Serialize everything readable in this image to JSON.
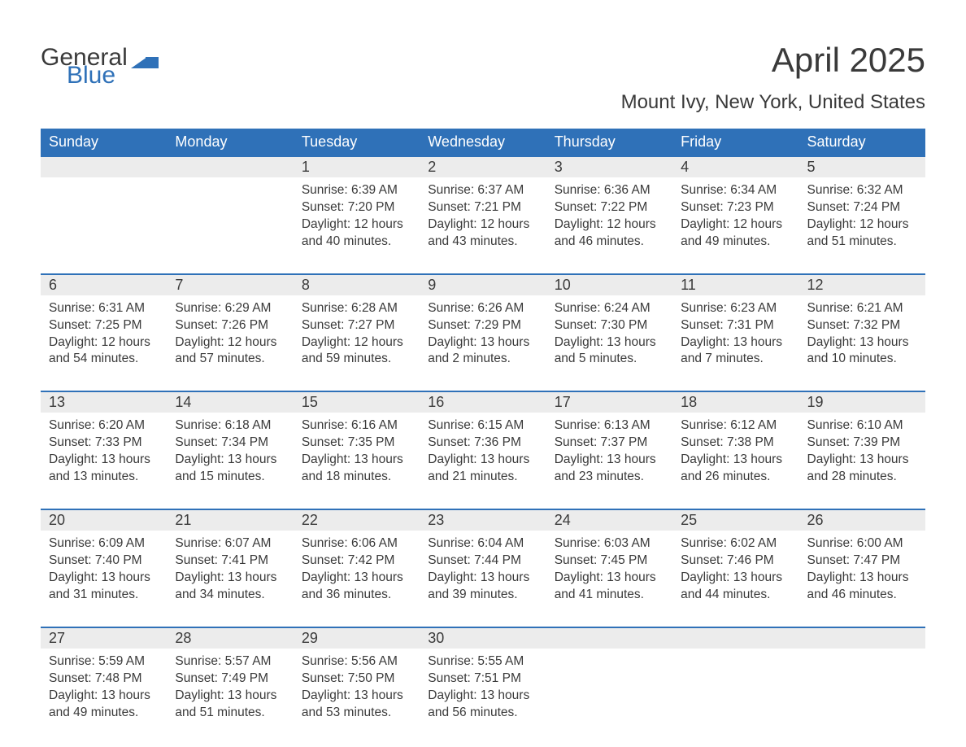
{
  "logo": {
    "part1": "General",
    "part2": "Blue"
  },
  "title": "April 2025",
  "location": "Mount Ivy, New York, United States",
  "colors": {
    "header_bg": "#2f71b8",
    "header_text": "#ffffff",
    "daynum_bg": "#ececec",
    "row_border": "#2f71b8",
    "text": "#3a3a3a",
    "page_bg": "#ffffff"
  },
  "typography": {
    "title_fontsize": 42,
    "location_fontsize": 24,
    "header_fontsize": 18,
    "daynum_fontsize": 18,
    "body_fontsize": 15.5
  },
  "columns": [
    "Sunday",
    "Monday",
    "Tuesday",
    "Wednesday",
    "Thursday",
    "Friday",
    "Saturday"
  ],
  "weeks": [
    [
      null,
      null,
      {
        "d": "1",
        "sr": "6:39 AM",
        "ss": "7:20 PM",
        "dl": "12 hours and 40 minutes."
      },
      {
        "d": "2",
        "sr": "6:37 AM",
        "ss": "7:21 PM",
        "dl": "12 hours and 43 minutes."
      },
      {
        "d": "3",
        "sr": "6:36 AM",
        "ss": "7:22 PM",
        "dl": "12 hours and 46 minutes."
      },
      {
        "d": "4",
        "sr": "6:34 AM",
        "ss": "7:23 PM",
        "dl": "12 hours and 49 minutes."
      },
      {
        "d": "5",
        "sr": "6:32 AM",
        "ss": "7:24 PM",
        "dl": "12 hours and 51 minutes."
      }
    ],
    [
      {
        "d": "6",
        "sr": "6:31 AM",
        "ss": "7:25 PM",
        "dl": "12 hours and 54 minutes."
      },
      {
        "d": "7",
        "sr": "6:29 AM",
        "ss": "7:26 PM",
        "dl": "12 hours and 57 minutes."
      },
      {
        "d": "8",
        "sr": "6:28 AM",
        "ss": "7:27 PM",
        "dl": "12 hours and 59 minutes."
      },
      {
        "d": "9",
        "sr": "6:26 AM",
        "ss": "7:29 PM",
        "dl": "13 hours and 2 minutes."
      },
      {
        "d": "10",
        "sr": "6:24 AM",
        "ss": "7:30 PM",
        "dl": "13 hours and 5 minutes."
      },
      {
        "d": "11",
        "sr": "6:23 AM",
        "ss": "7:31 PM",
        "dl": "13 hours and 7 minutes."
      },
      {
        "d": "12",
        "sr": "6:21 AM",
        "ss": "7:32 PM",
        "dl": "13 hours and 10 minutes."
      }
    ],
    [
      {
        "d": "13",
        "sr": "6:20 AM",
        "ss": "7:33 PM",
        "dl": "13 hours and 13 minutes."
      },
      {
        "d": "14",
        "sr": "6:18 AM",
        "ss": "7:34 PM",
        "dl": "13 hours and 15 minutes."
      },
      {
        "d": "15",
        "sr": "6:16 AM",
        "ss": "7:35 PM",
        "dl": "13 hours and 18 minutes."
      },
      {
        "d": "16",
        "sr": "6:15 AM",
        "ss": "7:36 PM",
        "dl": "13 hours and 21 minutes."
      },
      {
        "d": "17",
        "sr": "6:13 AM",
        "ss": "7:37 PM",
        "dl": "13 hours and 23 minutes."
      },
      {
        "d": "18",
        "sr": "6:12 AM",
        "ss": "7:38 PM",
        "dl": "13 hours and 26 minutes."
      },
      {
        "d": "19",
        "sr": "6:10 AM",
        "ss": "7:39 PM",
        "dl": "13 hours and 28 minutes."
      }
    ],
    [
      {
        "d": "20",
        "sr": "6:09 AM",
        "ss": "7:40 PM",
        "dl": "13 hours and 31 minutes."
      },
      {
        "d": "21",
        "sr": "6:07 AM",
        "ss": "7:41 PM",
        "dl": "13 hours and 34 minutes."
      },
      {
        "d": "22",
        "sr": "6:06 AM",
        "ss": "7:42 PM",
        "dl": "13 hours and 36 minutes."
      },
      {
        "d": "23",
        "sr": "6:04 AM",
        "ss": "7:44 PM",
        "dl": "13 hours and 39 minutes."
      },
      {
        "d": "24",
        "sr": "6:03 AM",
        "ss": "7:45 PM",
        "dl": "13 hours and 41 minutes."
      },
      {
        "d": "25",
        "sr": "6:02 AM",
        "ss": "7:46 PM",
        "dl": "13 hours and 44 minutes."
      },
      {
        "d": "26",
        "sr": "6:00 AM",
        "ss": "7:47 PM",
        "dl": "13 hours and 46 minutes."
      }
    ],
    [
      {
        "d": "27",
        "sr": "5:59 AM",
        "ss": "7:48 PM",
        "dl": "13 hours and 49 minutes."
      },
      {
        "d": "28",
        "sr": "5:57 AM",
        "ss": "7:49 PM",
        "dl": "13 hours and 51 minutes."
      },
      {
        "d": "29",
        "sr": "5:56 AM",
        "ss": "7:50 PM",
        "dl": "13 hours and 53 minutes."
      },
      {
        "d": "30",
        "sr": "5:55 AM",
        "ss": "7:51 PM",
        "dl": "13 hours and 56 minutes."
      },
      null,
      null,
      null
    ]
  ],
  "labels": {
    "sunrise": "Sunrise: ",
    "sunset": "Sunset: ",
    "daylight": "Daylight: "
  }
}
